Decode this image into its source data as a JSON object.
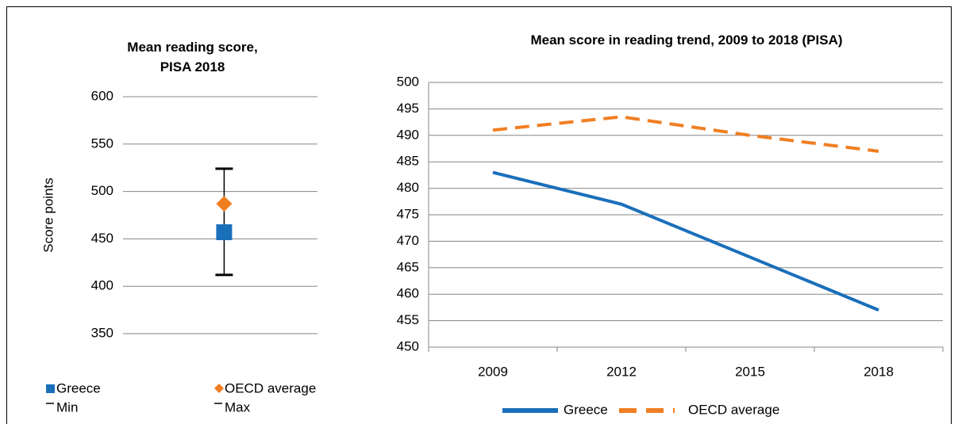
{
  "chart_data": [
    {
      "type": "dot",
      "title": "Mean reading score, PISA 2018",
      "y_label": "Score points",
      "categories": [
        null
      ],
      "series": [
        {
          "name": "Greece",
          "color": "#1a6fba",
          "marker": "square",
          "values": [
            457
          ]
        },
        {
          "name": "OECD average",
          "color": "#f07f22",
          "marker": "diamond",
          "values": [
            487
          ]
        },
        {
          "name": "Min",
          "color": "#000000",
          "marker": "dash",
          "values": [
            412
          ]
        },
        {
          "name": "Max",
          "color": "#000000",
          "marker": "dash",
          "values": [
            524
          ]
        }
      ],
      "ylim": [
        350,
        600
      ],
      "yticks": [
        350,
        400,
        450,
        500,
        550,
        600
      ],
      "grid": true,
      "legend": "bottom"
    },
    {
      "type": "line",
      "title": "Mean score in reading trend, 2009 to 2018 (PISA)",
      "categories": [
        "2009",
        "2012",
        "2015",
        "2018"
      ],
      "series": [
        {
          "name": "Greece",
          "color": "#1a6fba",
          "dashed": false,
          "values": [
            483,
            477,
            467,
            457
          ]
        },
        {
          "name": "OECD average",
          "color": "#f07f22",
          "dashed": true,
          "values": [
            491,
            493.5,
            490,
            487
          ]
        }
      ],
      "ylim": [
        450,
        500
      ],
      "yticks": [
        450,
        455,
        460,
        465,
        470,
        475,
        480,
        485,
        490,
        495,
        500
      ],
      "grid": true,
      "legend": "bottom"
    }
  ]
}
